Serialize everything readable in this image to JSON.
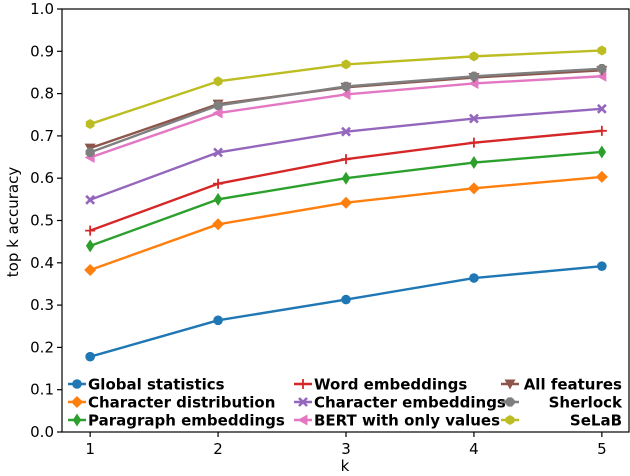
{
  "chart_data": {
    "type": "line",
    "xlabel": "k",
    "ylabel": "top k accuracy",
    "x": [
      1,
      2,
      3,
      4,
      5
    ],
    "x_ticks": [
      "1",
      "2",
      "3",
      "4",
      "5"
    ],
    "ylim": [
      0.0,
      1.0
    ],
    "y_ticks": [
      "0.0",
      "0.1",
      "0.2",
      "0.3",
      "0.4",
      "0.5",
      "0.6",
      "0.7",
      "0.8",
      "0.9",
      "1.0"
    ],
    "grid": false,
    "legend_position": "bottom",
    "series": [
      {
        "name": "Global statistics",
        "color": "#1f77b4",
        "marker": "circle",
        "values": [
          0.178,
          0.264,
          0.313,
          0.364,
          0.392
        ]
      },
      {
        "name": "Character distribution",
        "color": "#ff7f0e",
        "marker": "diamond",
        "values": [
          0.383,
          0.491,
          0.542,
          0.576,
          0.603
        ]
      },
      {
        "name": "Paragraph embeddings",
        "color": "#2ca02c",
        "marker": "thin-diamond",
        "values": [
          0.44,
          0.55,
          0.6,
          0.637,
          0.662
        ]
      },
      {
        "name": "Word embeddings",
        "color": "#d62728",
        "marker": "plus",
        "values": [
          0.476,
          0.587,
          0.645,
          0.684,
          0.712
        ]
      },
      {
        "name": "Character embeddings",
        "color": "#9467bd",
        "marker": "x",
        "values": [
          0.549,
          0.661,
          0.71,
          0.741,
          0.764
        ]
      },
      {
        "name": "BERT with only values",
        "color": "#e377c2",
        "marker": "left-triangle",
        "values": [
          0.649,
          0.754,
          0.798,
          0.824,
          0.841
        ]
      },
      {
        "name": "All features",
        "color": "#8c564b",
        "marker": "down-triangle",
        "values": [
          0.671,
          0.775,
          0.815,
          0.838,
          0.855
        ]
      },
      {
        "name": "Sherlock",
        "color": "#7f7f7f",
        "marker": "octagon",
        "values": [
          0.661,
          0.772,
          0.817,
          0.841,
          0.859
        ]
      },
      {
        "name": "SeLaB",
        "color": "#bcbd22",
        "marker": "hexagon",
        "values": [
          0.728,
          0.829,
          0.869,
          0.888,
          0.902
        ]
      }
    ]
  }
}
